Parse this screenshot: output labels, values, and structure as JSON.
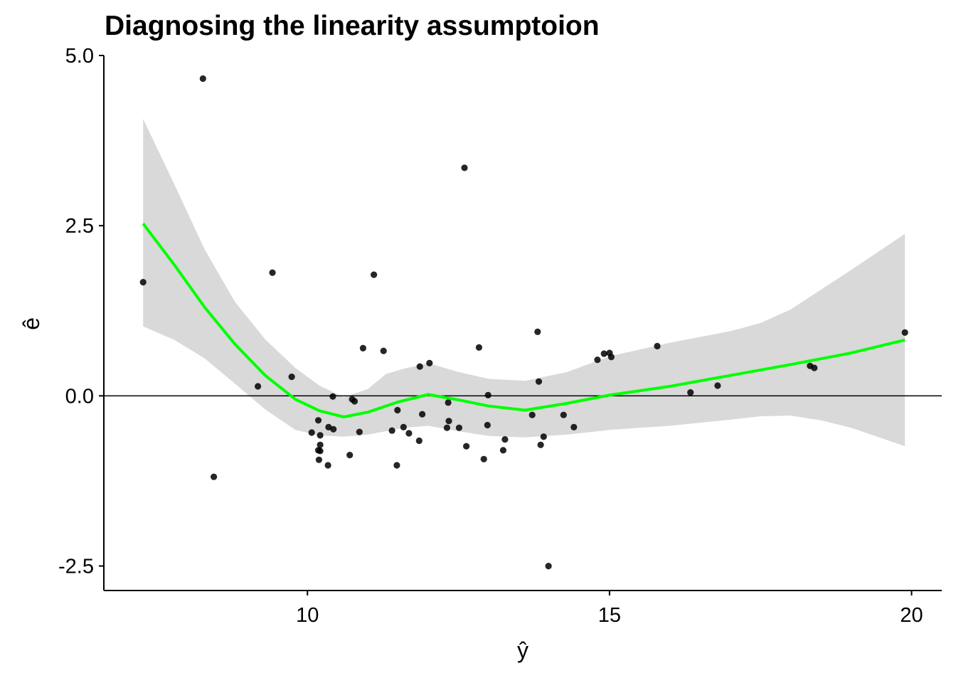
{
  "chart_data": {
    "type": "scatter",
    "title": "Diagnosing the linearity assumptoion",
    "xlabel": "ŷ",
    "ylabel": "ê",
    "xlim": [
      6.63,
      20.5
    ],
    "ylim": [
      -2.86,
      5.0
    ],
    "x_ticks": [
      10,
      15,
      20
    ],
    "x_tick_labels": [
      "10",
      "15",
      "20"
    ],
    "y_ticks": [
      -2.5,
      0,
      2.5,
      5.0
    ],
    "y_tick_labels": [
      "-2.5",
      "0.0",
      "2.5",
      "5.0"
    ],
    "grid": false,
    "legend": "none",
    "reference_line": {
      "y": 0
    },
    "colors": {
      "points": "#000000",
      "smooth_line": "#00ff00",
      "confidence_band": "#d9d9d9"
    },
    "points": [
      {
        "x": 7.28,
        "y": 1.67
      },
      {
        "x": 8.27,
        "y": 4.66
      },
      {
        "x": 8.45,
        "y": -1.19
      },
      {
        "x": 9.18,
        "y": 0.14
      },
      {
        "x": 9.42,
        "y": 1.81
      },
      {
        "x": 9.74,
        "y": 0.28
      },
      {
        "x": 10.07,
        "y": -0.54
      },
      {
        "x": 10.18,
        "y": -0.36
      },
      {
        "x": 10.18,
        "y": -0.8
      },
      {
        "x": 10.19,
        "y": -0.94
      },
      {
        "x": 10.21,
        "y": -0.72
      },
      {
        "x": 10.21,
        "y": -0.58
      },
      {
        "x": 10.21,
        "y": -0.81
      },
      {
        "x": 10.34,
        "y": -1.02
      },
      {
        "x": 10.35,
        "y": -0.46
      },
      {
        "x": 10.42,
        "y": -0.01
      },
      {
        "x": 10.43,
        "y": -0.49
      },
      {
        "x": 10.7,
        "y": -0.87
      },
      {
        "x": 10.74,
        "y": -0.05
      },
      {
        "x": 10.78,
        "y": -0.08
      },
      {
        "x": 10.86,
        "y": -0.53
      },
      {
        "x": 10.92,
        "y": 0.7
      },
      {
        "x": 11.1,
        "y": 1.78
      },
      {
        "x": 11.26,
        "y": 0.66
      },
      {
        "x": 11.4,
        "y": -0.51
      },
      {
        "x": 11.48,
        "y": -1.02
      },
      {
        "x": 11.49,
        "y": -0.21
      },
      {
        "x": 11.59,
        "y": -0.46
      },
      {
        "x": 11.68,
        "y": -0.55
      },
      {
        "x": 11.85,
        "y": -0.66
      },
      {
        "x": 11.86,
        "y": 0.43
      },
      {
        "x": 11.9,
        "y": -0.27
      },
      {
        "x": 12.02,
        "y": 0.48
      },
      {
        "x": 12.31,
        "y": -0.47
      },
      {
        "x": 12.33,
        "y": -0.1
      },
      {
        "x": 12.34,
        "y": -0.37
      },
      {
        "x": 12.51,
        "y": -0.47
      },
      {
        "x": 12.6,
        "y": 3.35
      },
      {
        "x": 12.63,
        "y": -0.74
      },
      {
        "x": 12.84,
        "y": 0.71
      },
      {
        "x": 12.92,
        "y": -0.93
      },
      {
        "x": 12.98,
        "y": -0.43
      },
      {
        "x": 12.99,
        "y": 0.01
      },
      {
        "x": 13.24,
        "y": -0.8
      },
      {
        "x": 13.27,
        "y": -0.64
      },
      {
        "x": 13.72,
        "y": -0.28
      },
      {
        "x": 13.81,
        "y": 0.94
      },
      {
        "x": 13.83,
        "y": 0.21
      },
      {
        "x": 13.86,
        "y": -0.72
      },
      {
        "x": 13.91,
        "y": -0.6
      },
      {
        "x": 13.99,
        "y": -2.5
      },
      {
        "x": 14.24,
        "y": -0.28
      },
      {
        "x": 14.41,
        "y": -0.46
      },
      {
        "x": 14.8,
        "y": 0.53
      },
      {
        "x": 14.91,
        "y": 0.62
      },
      {
        "x": 15.0,
        "y": 0.63
      },
      {
        "x": 15.03,
        "y": 0.57
      },
      {
        "x": 15.79,
        "y": 0.73
      },
      {
        "x": 16.34,
        "y": 0.05
      },
      {
        "x": 16.79,
        "y": 0.15
      },
      {
        "x": 18.32,
        "y": 0.44
      },
      {
        "x": 18.39,
        "y": 0.41
      },
      {
        "x": 19.89,
        "y": 0.93
      }
    ],
    "smooth_line": [
      {
        "x": 7.28,
        "y": 2.53
      },
      {
        "x": 7.8,
        "y": 1.92
      },
      {
        "x": 8.3,
        "y": 1.3
      },
      {
        "x": 8.8,
        "y": 0.76
      },
      {
        "x": 9.3,
        "y": 0.3
      },
      {
        "x": 9.8,
        "y": -0.05
      },
      {
        "x": 10.2,
        "y": -0.22
      },
      {
        "x": 10.6,
        "y": -0.31
      },
      {
        "x": 11.0,
        "y": -0.24
      },
      {
        "x": 11.5,
        "y": -0.09
      },
      {
        "x": 12.0,
        "y": 0.02
      },
      {
        "x": 12.5,
        "y": -0.06
      },
      {
        "x": 13.0,
        "y": -0.15
      },
      {
        "x": 13.6,
        "y": -0.21
      },
      {
        "x": 14.3,
        "y": -0.11
      },
      {
        "x": 15.0,
        "y": 0.01
      },
      {
        "x": 16.0,
        "y": 0.14
      },
      {
        "x": 17.0,
        "y": 0.3
      },
      {
        "x": 18.0,
        "y": 0.46
      },
      {
        "x": 19.0,
        "y": 0.63
      },
      {
        "x": 19.89,
        "y": 0.82
      }
    ],
    "confidence_band": [
      {
        "x": 7.28,
        "lower": 1.02,
        "upper": 4.07
      },
      {
        "x": 7.8,
        "lower": 0.82,
        "upper": 3.1
      },
      {
        "x": 8.3,
        "lower": 0.55,
        "upper": 2.15
      },
      {
        "x": 8.8,
        "lower": 0.18,
        "upper": 1.38
      },
      {
        "x": 9.3,
        "lower": -0.2,
        "upper": 0.83
      },
      {
        "x": 9.8,
        "lower": -0.5,
        "upper": 0.41
      },
      {
        "x": 10.2,
        "lower": -0.58,
        "upper": 0.15
      },
      {
        "x": 10.6,
        "lower": -0.6,
        "upper": -0.02
      },
      {
        "x": 11.0,
        "lower": -0.57,
        "upper": 0.1
      },
      {
        "x": 11.3,
        "lower": -0.52,
        "upper": 0.32
      },
      {
        "x": 11.6,
        "lower": -0.47,
        "upper": 0.4
      },
      {
        "x": 12.0,
        "lower": -0.44,
        "upper": 0.48
      },
      {
        "x": 12.5,
        "lower": -0.52,
        "upper": 0.35
      },
      {
        "x": 13.0,
        "lower": -0.59,
        "upper": 0.25
      },
      {
        "x": 13.6,
        "lower": -0.61,
        "upper": 0.22
      },
      {
        "x": 14.3,
        "lower": -0.57,
        "upper": 0.35
      },
      {
        "x": 15.0,
        "lower": -0.5,
        "upper": 0.58
      },
      {
        "x": 16.0,
        "lower": -0.44,
        "upper": 0.78
      },
      {
        "x": 17.0,
        "lower": -0.35,
        "upper": 0.95
      },
      {
        "x": 17.5,
        "lower": -0.3,
        "upper": 1.07
      },
      {
        "x": 18.0,
        "lower": -0.29,
        "upper": 1.27
      },
      {
        "x": 18.5,
        "lower": -0.36,
        "upper": 1.56
      },
      {
        "x": 19.0,
        "lower": -0.47,
        "upper": 1.85
      },
      {
        "x": 19.89,
        "lower": -0.74,
        "upper": 2.38
      }
    ]
  }
}
